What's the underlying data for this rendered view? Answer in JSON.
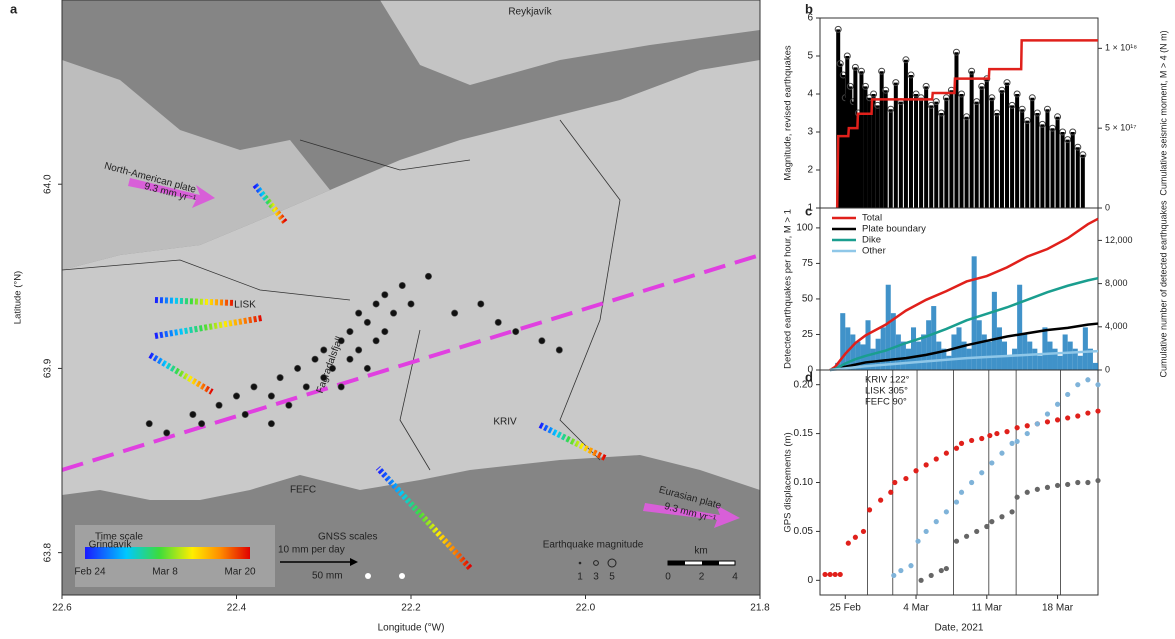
{
  "chart_data": [
    {
      "type": "map",
      "panel": "a",
      "xlabel": "Longitude (°W)",
      "ylabel": "Latitude (°N)",
      "xlim": [
        22.6,
        21.8
      ],
      "ylim": [
        63.777,
        64.1
      ],
      "xticks": [
        22.6,
        22.4,
        22.2,
        {
          "value": 22,
          "label": "22.0"
        },
        21.8
      ],
      "yticks": [
        63.8,
        63.9,
        {
          "value": 64,
          "label": "64.0"
        }
      ],
      "labels": [
        "Reykjavík",
        "North-American plate",
        "9.3 mm yr⁻¹",
        "LISK",
        "Fagradalsfjall",
        "KRIV",
        "FEFC",
        "Grindavík",
        "Eurasian plate",
        "9.3 mm yr⁻¹"
      ],
      "time_scale": {
        "title": "Time scale",
        "labels": [
          "Feb 24",
          "Mar 8",
          "Mar 20"
        ]
      },
      "gnss_scale": {
        "title": "GNSS scales",
        "rate": "10 mm per day",
        "length": "50 mm"
      },
      "magnitude_scale": {
        "title": "Earthquake magnitude",
        "values": [
          1,
          3,
          5
        ]
      },
      "km_scale": {
        "title": "km",
        "ticks": [
          0,
          2,
          4
        ]
      },
      "earthquakes": {
        "x": [
          22.45,
          22.42,
          22.4,
          22.38,
          22.36,
          22.35,
          22.34,
          22.33,
          22.32,
          22.31,
          22.3,
          22.3,
          22.29,
          22.28,
          22.28,
          22.27,
          22.27,
          22.26,
          22.26,
          22.25,
          22.25,
          22.24,
          22.24,
          22.23,
          22.23,
          22.22,
          22.21,
          22.2,
          22.18,
          22.15,
          22.12,
          22.1,
          22.08,
          22.05,
          22.03,
          22.5,
          22.48,
          22.44,
          22.39,
          22.36
        ],
        "y": [
          63.875,
          63.88,
          63.885,
          63.89,
          63.885,
          63.895,
          63.88,
          63.9,
          63.89,
          63.905,
          63.895,
          63.91,
          63.9,
          63.915,
          63.89,
          63.92,
          63.905,
          63.93,
          63.91,
          63.925,
          63.9,
          63.935,
          63.915,
          63.94,
          63.92,
          63.93,
          63.945,
          63.935,
          63.95,
          63.93,
          63.935,
          63.925,
          63.92,
          63.915,
          63.91,
          63.87,
          63.865,
          63.87,
          63.875,
          63.87
        ]
      }
    },
    {
      "type": "stem",
      "panel": "b",
      "ylabel": "Magnitude, revised earthquakes",
      "y2label": "Cumulative seismic moment, M > 4 (N m)",
      "xlim": [
        -1.5,
        26
      ],
      "ylim": [
        1,
        6
      ],
      "yticks": [
        1,
        2,
        3,
        4,
        5,
        6
      ],
      "y2lim": [
        0,
        1.19e+18
      ],
      "y2ticks": [
        0,
        {
          "value": 5e+17,
          "label": "5 × 10¹⁷"
        },
        {
          "value": 1e+18,
          "label": "1 × 10¹⁸"
        }
      ],
      "color": "#000000",
      "x": [
        0.3,
        0.5,
        0.8,
        1,
        1.2,
        1.5,
        1.8,
        2,
        2.3,
        2.6,
        3,
        3.4,
        3.8,
        4.2,
        4.6,
        5,
        5.5,
        6,
        6.5,
        7,
        7.5,
        8,
        8.5,
        9,
        9.5,
        10,
        10.5,
        11,
        11.5,
        12,
        12.5,
        13,
        13.5,
        14,
        14.5,
        15,
        15.5,
        16,
        16.5,
        17,
        17.5,
        18,
        18.5,
        19,
        19.5,
        20,
        20.5,
        21,
        21.5,
        22,
        22.5,
        23,
        23.5,
        24,
        24.5
      ],
      "values": [
        5.7,
        4.8,
        4.5,
        3.9,
        5.0,
        4.2,
        3.8,
        4.7,
        3.5,
        4.6,
        4.2,
        3.9,
        4.0,
        3.7,
        4.6,
        4.1,
        3.6,
        4.3,
        3.8,
        4.9,
        4.5,
        4.0,
        3.9,
        4.2,
        3.7,
        3.8,
        3.5,
        3.9,
        4.1,
        5.1,
        4.0,
        3.4,
        4.6,
        3.8,
        4.2,
        4.4,
        3.9,
        3.5,
        4.1,
        4.3,
        3.7,
        4.0,
        3.6,
        3.3,
        3.9,
        3.5,
        3.2,
        3.6,
        3.1,
        3.4,
        3.0,
        2.8,
        3.0,
        2.6,
        2.4
      ],
      "series": [
        {
          "axis": "y2",
          "color": "#e0201b",
          "x": [
            0.2,
            0.3,
            1.3,
            1.35,
            2.2,
            2.25,
            3.6,
            3.65,
            9.6,
            9.65,
            11.8,
            11.85,
            15.2,
            15.25,
            18.4,
            18.45,
            26
          ],
          "values": [
            0,
            4.5e+17,
            4.5e+17,
            5e+17,
            5e+17,
            5.9e+17,
            5.9e+17,
            6.8e+17,
            6.8e+17,
            7.2e+17,
            7.2e+17,
            8.1e+17,
            8.1e+17,
            8.7e+17,
            8.7e+17,
            1.05e+18,
            1.05e+18
          ]
        }
      ]
    },
    {
      "type": "histogram",
      "panel": "c",
      "ylabel": "Detected earthquakes per hour, M > 1",
      "y2label": "Cumulative number of detected earthquakes",
      "xlim": [
        -1.5,
        26
      ],
      "ylim": [
        0,
        114
      ],
      "yticks": [
        0,
        25,
        50,
        75,
        100
      ],
      "y2lim": [
        0,
        15000
      ],
      "y2ticks": [
        0,
        {
          "value": 4000,
          "label": "4,000"
        },
        {
          "value": 8000,
          "label": "8,000"
        },
        {
          "value": 12000,
          "label": "12,000"
        }
      ],
      "color": "#1f7fbf",
      "legend": "upper left",
      "bins": [
        -0.5,
        0,
        0.5,
        1,
        1.5,
        2,
        2.5,
        3,
        3.5,
        4,
        4.5,
        5,
        5.5,
        6,
        6.5,
        7,
        7.5,
        8,
        8.5,
        9,
        9.5,
        10,
        10.5,
        11,
        11.5,
        12,
        12.5,
        13,
        13.5,
        14,
        14.5,
        15,
        15.5,
        16,
        16.5,
        17,
        17.5,
        18,
        18.5,
        19,
        19.5,
        20,
        20.5,
        21,
        21.5,
        22,
        22.5,
        23,
        23.5,
        24,
        24.5,
        25,
        25.5,
        26
      ],
      "values": [
        0,
        5,
        40,
        30,
        25,
        20,
        18,
        35,
        15,
        22,
        30,
        60,
        40,
        25,
        20,
        15,
        30,
        20,
        25,
        35,
        45,
        20,
        15,
        10,
        25,
        30,
        20,
        15,
        80,
        35,
        25,
        20,
        55,
        30,
        20,
        10,
        15,
        60,
        25,
        20,
        15,
        10,
        30,
        20,
        15,
        10,
        25,
        20,
        15,
        10,
        30,
        15,
        5
      ],
      "series": [
        {
          "name": "Total",
          "color": "#e0201b",
          "axis": "y2",
          "x": [
            -0.5,
            0,
            1,
            2,
            3,
            5,
            7,
            9,
            11,
            13,
            15,
            17,
            19,
            21,
            23,
            25,
            26
          ],
          "values": [
            0,
            300,
            1500,
            2500,
            3200,
            4200,
            5500,
            6500,
            7300,
            8200,
            8700,
            9500,
            10500,
            11200,
            12200,
            13500,
            14000
          ]
        },
        {
          "name": "Plate boundary",
          "color": "#000000",
          "axis": "y2",
          "x": [
            -0.5,
            0,
            1,
            2,
            3,
            5,
            7,
            9,
            11,
            13,
            15,
            17,
            19,
            21,
            23,
            25,
            26
          ],
          "values": [
            0,
            100,
            300,
            500,
            700,
            900,
            1100,
            1400,
            1800,
            2300,
            2700,
            3100,
            3400,
            3700,
            3900,
            4200,
            4300
          ]
        },
        {
          "name": "Dike",
          "color": "#1a9e8f",
          "axis": "y2",
          "x": [
            -0.5,
            0,
            1,
            2,
            3,
            5,
            7,
            9,
            11,
            13,
            15,
            17,
            19,
            21,
            23,
            25,
            26
          ],
          "values": [
            0,
            100,
            600,
            1000,
            1300,
            1800,
            2500,
            3100,
            3800,
            4600,
            5200,
            5800,
            6500,
            7200,
            7800,
            8300,
            8500
          ]
        },
        {
          "name": "Other",
          "color": "#8fc7e8",
          "axis": "y2",
          "x": [
            -0.5,
            0,
            1,
            2,
            3,
            5,
            7,
            9,
            11,
            13,
            15,
            17,
            19,
            21,
            23,
            25,
            26
          ],
          "values": [
            0,
            50,
            150,
            250,
            350,
            500,
            650,
            800,
            950,
            1100,
            1200,
            1300,
            1400,
            1500,
            1600,
            1700,
            1750
          ]
        }
      ]
    },
    {
      "type": "scatter",
      "panel": "d",
      "ylabel": "GPS displacements (m)",
      "xlabel": "Date, 2021",
      "xlim": [
        -1.5,
        26
      ],
      "ylim": [
        -0.015,
        0.215
      ],
      "xticks": [
        {
          "value": 1,
          "label": "25 Feb"
        },
        {
          "value": 8,
          "label": "4 Mar"
        },
        {
          "value": 15,
          "label": "11 Mar"
        },
        {
          "value": 22,
          "label": "18 Mar"
        }
      ],
      "yticks": [
        0,
        {
          "value": 0.05,
          "label": "0.05"
        },
        {
          "value": 0.1,
          "label": "0.10"
        },
        {
          "value": 0.15,
          "label": "0.15"
        },
        {
          "value": 0.2,
          "label": "0.20"
        }
      ],
      "annotations": [
        "KRIV 122°",
        "LISK 305°",
        "FEFC 90°"
      ],
      "event_lines": [
        3.2,
        5.7,
        8.1,
        11.7,
        15.2,
        17.9,
        22.3
      ],
      "series": [
        {
          "color": "#e0201b",
          "x": [
            -1,
            -0.5,
            0,
            0.5,
            1.3,
            2,
            2.8,
            3.4,
            4.5,
            5.5,
            5.9,
            7,
            8,
            9,
            10,
            11,
            12,
            12.5,
            13.5,
            14.5,
            15.3,
            16,
            17,
            18,
            19,
            20,
            21,
            22,
            23,
            24,
            25,
            26
          ],
          "values": [
            0.006,
            0.006,
            0.006,
            0.006,
            0.038,
            0.044,
            0.05,
            0.072,
            0.082,
            0.09,
            0.1,
            0.104,
            0.112,
            0.118,
            0.124,
            0.13,
            0.135,
            0.14,
            0.143,
            0.145,
            0.148,
            0.15,
            0.152,
            0.156,
            0.158,
            0.16,
            0.162,
            0.164,
            0.166,
            0.168,
            0.171,
            0.173
          ]
        },
        {
          "color": "#7fb3d9",
          "x": [
            5.8,
            6.5,
            7.5,
            8.2,
            9,
            10,
            11,
            12,
            12.5,
            13.5,
            14.5,
            15.5,
            16.5,
            17.5,
            18,
            19,
            20,
            21,
            22,
            23,
            24,
            25,
            26
          ],
          "values": [
            0.005,
            0.01,
            0.015,
            0.04,
            0.05,
            0.06,
            0.07,
            0.08,
            0.09,
            0.1,
            0.11,
            0.12,
            0.13,
            0.14,
            0.142,
            0.15,
            0.16,
            0.17,
            0.18,
            0.19,
            0.2,
            0.205,
            0.2
          ]
        },
        {
          "color": "#666666",
          "x": [
            8.5,
            9.5,
            10.5,
            11,
            12,
            13,
            14,
            15,
            15.5,
            16.5,
            17.5,
            18,
            19,
            20,
            21,
            22,
            23,
            24,
            25,
            26
          ],
          "values": [
            0,
            0.005,
            0.01,
            0.012,
            0.04,
            0.045,
            0.05,
            0.055,
            0.06,
            0.065,
            0.07,
            0.085,
            0.09,
            0.093,
            0.095,
            0.097,
            0.098,
            0.1,
            0.1,
            0.102
          ]
        }
      ]
    }
  ]
}
